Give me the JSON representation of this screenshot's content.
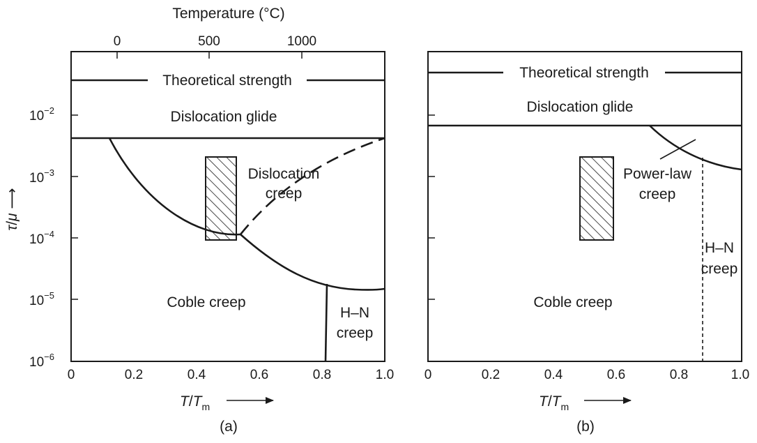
{
  "top_axis": {
    "title": "Temperature (°C)",
    "ticks": [
      "0",
      "500",
      "1000"
    ]
  },
  "y_axis": {
    "label_tau": "τ",
    "label_slash": "/",
    "label_mu": "μ",
    "arrow": "⟶",
    "base": "10",
    "exponents": [
      "−2",
      "−3",
      "−4",
      "−5",
      "−6"
    ]
  },
  "x_axis": {
    "ticks": [
      "0",
      "0.2",
      "0.4",
      "0.6",
      "0.8",
      "1.0"
    ],
    "label_T": "T",
    "label_slash": "/",
    "label_Tm": "T",
    "label_sub": "m"
  },
  "panel_a": {
    "caption": "(a)",
    "theoretical": "Theoretical strength",
    "glide": "Dislocation glide",
    "disl_creep_1": "Dislocation",
    "disl_creep_2": "creep",
    "coble": "Coble creep",
    "hn_1": "H–N",
    "hn_2": "creep"
  },
  "panel_b": {
    "caption": "(b)",
    "theoretical": "Theoretical strength",
    "glide": "Dislocation glide",
    "pl_1": "Power-law",
    "pl_2": "creep",
    "coble": "Coble creep",
    "hn_1": "H–N",
    "hn_2": "creep"
  },
  "colors": {
    "ink": "#1a1a1a",
    "background": "#ffffff"
  }
}
